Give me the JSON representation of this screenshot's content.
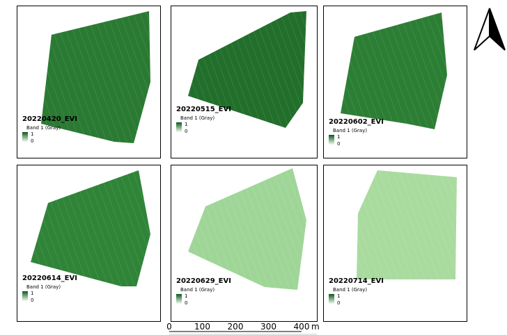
{
  "panels": [
    {
      "title": "20220420_EVI",
      "legend_label": "Band 1 (Gray)",
      "legend_max": 1,
      "legend_min": 0
    },
    {
      "title": "20220515_EVI",
      "legend_label": "Band 1 (Gray)",
      "legend_max": 1,
      "legend_min": 0
    },
    {
      "title": "20220602_EVI",
      "legend_label": "Band 1 (Gray)",
      "legend_max": 1,
      "legend_min": 0
    },
    {
      "title": "20220614_EVI",
      "legend_label": "Band 1 (Gray)",
      "legend_max": 1,
      "legend_min": 0
    },
    {
      "title": "20220629_EVI",
      "legend_label": "Band 1 (Gray)",
      "legend_max": 1,
      "legend_min": 0
    },
    {
      "title": "20220714_EVI",
      "legend_label": "Band 1 (Gray)",
      "legend_max": 1,
      "legend_min": 0
    }
  ],
  "scale_bar": {
    "ticks": [
      0,
      100,
      200,
      300,
      400
    ],
    "unit": "m"
  }
}
